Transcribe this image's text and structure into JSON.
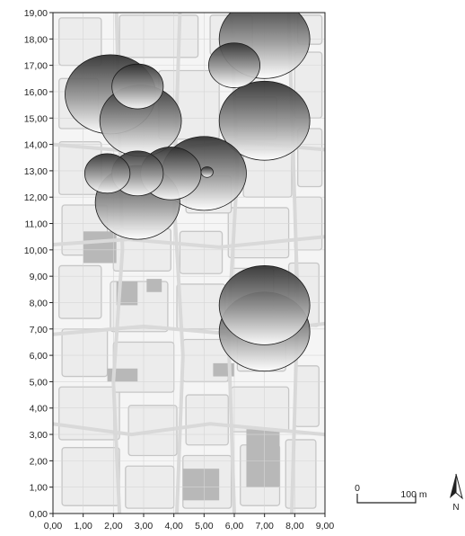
{
  "chart_data": {
    "type": "scatter",
    "subtype": "bubble-map",
    "xlim": [
      0,
      9
    ],
    "ylim": [
      0,
      19
    ],
    "x_ticks": [
      "0,00",
      "1,00",
      "2,00",
      "3,00",
      "4,00",
      "5,00",
      "6,00",
      "7,00",
      "8,00",
      "9,00"
    ],
    "y_ticks": [
      "0,00",
      "1,00",
      "2,00",
      "3,00",
      "4,00",
      "5,00",
      "6,00",
      "7,00",
      "8,00",
      "9,00",
      "10,00",
      "11,00",
      "12,00",
      "13,00",
      "14,00",
      "15,00",
      "16,00",
      "17,00",
      "18,00",
      "19,00"
    ],
    "grid": true,
    "background": "city map",
    "points": [
      {
        "x": 7.0,
        "y": 18.0,
        "r": 1.5
      },
      {
        "x": 1.9,
        "y": 15.9,
        "r": 1.5
      },
      {
        "x": 7.0,
        "y": 14.9,
        "r": 1.5
      },
      {
        "x": 5.0,
        "y": 12.9,
        "r": 1.4
      },
      {
        "x": 2.8,
        "y": 11.8,
        "r": 1.4
      },
      {
        "x": 2.9,
        "y": 14.9,
        "r": 1.35
      },
      {
        "x": 7.0,
        "y": 6.9,
        "r": 1.5
      },
      {
        "x": 7.0,
        "y": 7.9,
        "r": 1.5
      },
      {
        "x": 6.0,
        "y": 17.0,
        "r": 0.85
      },
      {
        "x": 2.8,
        "y": 16.2,
        "r": 0.85
      },
      {
        "x": 3.9,
        "y": 12.9,
        "r": 1.0
      },
      {
        "x": 2.8,
        "y": 12.9,
        "r": 0.85
      },
      {
        "x": 1.8,
        "y": 12.9,
        "r": 0.75
      },
      {
        "x": 5.1,
        "y": 12.95,
        "r": 0.2
      }
    ],
    "scale_bar": {
      "label_start": "0",
      "label_end": "100 m"
    },
    "north_arrow": {
      "label": "N"
    }
  },
  "colors": {
    "axis": "#222222",
    "grid": "#d6d6d6",
    "bubble_dark": "#3a3a3a",
    "bubble_light": "#ffffff",
    "map_background": "#f4f4f4",
    "map_roads": "#c4c4c4"
  }
}
